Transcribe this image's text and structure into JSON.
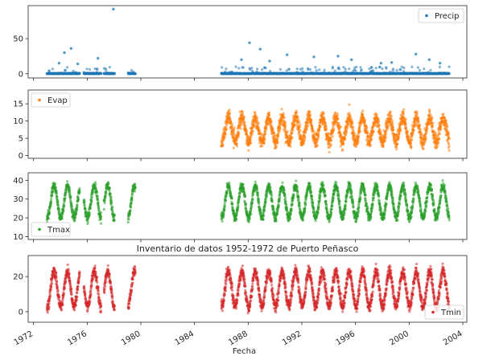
{
  "chart_data": {
    "type": "scatter",
    "xlabel": "Fecha",
    "x_ticks": [
      "1972",
      "1976",
      "1980",
      "1984",
      "1988",
      "1992",
      "1996",
      "2000",
      "2004"
    ],
    "xlim": [
      1971.6,
      2004.3
    ],
    "periods": [
      {
        "start": 1973.0,
        "end": 1979.6,
        "gaps": [
          [
            1975.45,
            1975.75
          ],
          [
            1977.05,
            1977.25
          ],
          [
            1978.05,
            1979.05
          ]
        ]
      },
      {
        "start": 1986.0,
        "end": 2003.0,
        "gaps": []
      }
    ],
    "panels": [
      {
        "series": "Precip",
        "color": "#1f77b4",
        "ylim": [
          -6,
          97
        ],
        "y_ticks": [
          0,
          50
        ],
        "legend_position": "upper right",
        "seasonal": false,
        "base": 0,
        "noise": 0.4,
        "spikes": [
          {
            "x": 1977.95,
            "y": 92
          },
          {
            "x": 1974.8,
            "y": 36
          },
          {
            "x": 1974.3,
            "y": 30
          },
          {
            "x": 1976.8,
            "y": 22
          },
          {
            "x": 1973.9,
            "y": 15
          },
          {
            "x": 1975.3,
            "y": 14
          },
          {
            "x": 1988.1,
            "y": 44
          },
          {
            "x": 1988.9,
            "y": 35
          },
          {
            "x": 1987.5,
            "y": 20
          },
          {
            "x": 1989.6,
            "y": 18
          },
          {
            "x": 1990.9,
            "y": 27
          },
          {
            "x": 1992.9,
            "y": 24
          },
          {
            "x": 1994.7,
            "y": 25
          },
          {
            "x": 1995.7,
            "y": 20
          },
          {
            "x": 1997.9,
            "y": 15
          },
          {
            "x": 1998.7,
            "y": 16
          },
          {
            "x": 2000.5,
            "y": 28
          },
          {
            "x": 2001.5,
            "y": 20
          },
          {
            "x": 2002.3,
            "y": 15
          }
        ]
      },
      {
        "series": "Evap",
        "color": "#ff7f0e",
        "ylim": [
          -0.8,
          19
        ],
        "y_ticks": [
          0,
          5,
          10,
          15
        ],
        "legend_position": "upper left",
        "seasonal": true,
        "base": 7.5,
        "amplitude": 3.5,
        "noise": 2.0,
        "periods_used": [
          1
        ],
        "max": 18
      },
      {
        "series": "Tmax",
        "color": "#2ca02c",
        "ylim": [
          8.5,
          44
        ],
        "y_ticks": [
          10,
          20,
          30,
          40
        ],
        "legend_position": "lower left",
        "seasonal": true,
        "base": 28.5,
        "amplitude": 8.5,
        "noise": 2.2,
        "periods_used": [
          0,
          1
        ],
        "max": 42,
        "min": 10
      },
      {
        "series": "Tmin",
        "color": "#d62728",
        "ylim": [
          -6,
          32
        ],
        "y_ticks": [
          0,
          20
        ],
        "legend_position": "lower right",
        "seasonal": true,
        "base": 13,
        "amplitude": 10,
        "noise": 3,
        "periods_used": [
          0,
          1
        ],
        "max": 31,
        "min": -4
      }
    ],
    "title": "Inventario de datos 1952-1972 de Puerto Peñasco",
    "title_above_panel": 4
  }
}
